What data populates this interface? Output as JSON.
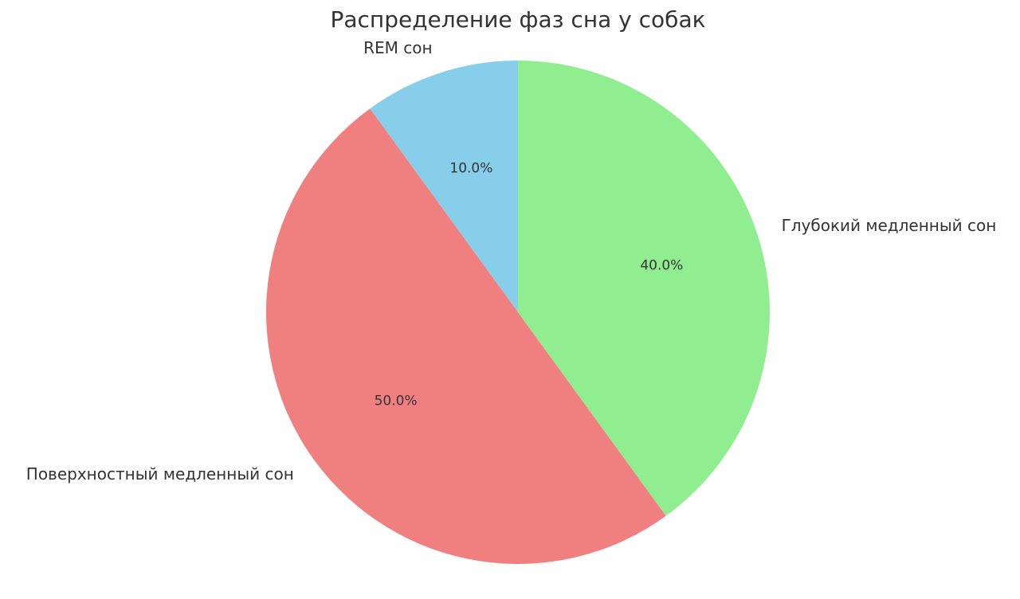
{
  "chart_data": {
    "type": "pie",
    "title": "Распределение фаз сна у собак",
    "categories": [
      "REM сон",
      "Поверхностный медленный сон",
      "Глубокий медленный сон"
    ],
    "values": [
      10,
      50,
      40
    ],
    "value_labels": [
      "10.0%",
      "50.0%",
      "40.0%"
    ],
    "colors": [
      "#87ceeb",
      "#f08080",
      "#90ee90"
    ]
  }
}
